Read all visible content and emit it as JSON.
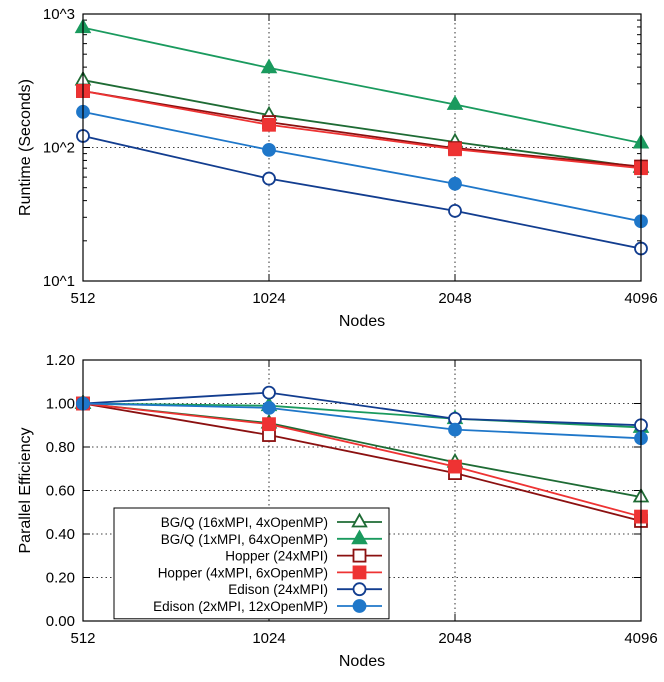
{
  "chart_data": [
    {
      "type": "line",
      "x": [
        512,
        1024,
        2048,
        4096
      ],
      "x_scale": "log2",
      "y_scale": "log10",
      "xlabel": "Nodes",
      "ylabel": "Runtime (Seconds)",
      "xticks": [
        "512",
        "1024",
        "2048",
        "4096"
      ],
      "yticks": [
        {
          "value": 10,
          "label": "10^1"
        },
        {
          "value": 100,
          "label": "10^2"
        },
        {
          "value": 1000,
          "label": "10^3"
        }
      ],
      "ylim": [
        10,
        1000
      ],
      "grid": true,
      "series": [
        {
          "name": "BG/Q (16xMPI, 4xOpenMP)",
          "color": "#1e6b34",
          "marker": "triangle-open",
          "values": [
            320,
            175,
            110,
            71
          ]
        },
        {
          "name": "BG/Q (1xMPI, 64xOpenMP)",
          "color": "#1a9a5e",
          "marker": "triangle-filled",
          "values": [
            790,
            395,
            210,
            108
          ]
        },
        {
          "name": "Hopper (24xMPI)",
          "color": "#8b1010",
          "marker": "square-open",
          "values": [
            265,
            155,
            99,
            72
          ]
        },
        {
          "name": "Hopper (4xMPI, 6xOpenMP)",
          "color": "#ee3333",
          "marker": "square-filled",
          "values": [
            265,
            148,
            97,
            70
          ]
        },
        {
          "name": "Edison (24xMPI)",
          "color": "#123d8f",
          "marker": "circle-open",
          "values": [
            122,
            58.5,
            33.5,
            17.5
          ]
        },
        {
          "name": "Edison (2xMPI, 12xOpenMP)",
          "color": "#1f77c9",
          "marker": "circle-filled",
          "values": [
            185,
            96,
            53.5,
            28
          ]
        }
      ]
    },
    {
      "type": "line",
      "x": [
        512,
        1024,
        2048,
        4096
      ],
      "x_scale": "log2",
      "xlabel": "Nodes",
      "ylabel": "Parallel Efficiency",
      "xticks": [
        "512",
        "1024",
        "2048",
        "4096"
      ],
      "yticks": [
        {
          "value": 0,
          "label": "0.00"
        },
        {
          "value": 0.2,
          "label": "0.20"
        },
        {
          "value": 0.4,
          "label": "0.40"
        },
        {
          "value": 0.6,
          "label": "0.60"
        },
        {
          "value": 0.8,
          "label": "0.80"
        },
        {
          "value": 1.0,
          "label": "1.00"
        },
        {
          "value": 1.2,
          "label": "1.20"
        }
      ],
      "ylim": [
        0,
        1.2
      ],
      "grid": true,
      "legend_position": "bottom-left",
      "series": [
        {
          "name": "BG/Q (16xMPI, 4xOpenMP)",
          "color": "#1e6b34",
          "marker": "triangle-open",
          "values": [
            1.0,
            0.91,
            0.73,
            0.57
          ]
        },
        {
          "name": "BG/Q (1xMPI, 64xOpenMP)",
          "color": "#1a9a5e",
          "marker": "triangle-filled",
          "values": [
            1.0,
            0.99,
            0.93,
            0.89
          ]
        },
        {
          "name": "Hopper (24xMPI)",
          "color": "#8b1010",
          "marker": "square-open",
          "values": [
            1.0,
            0.855,
            0.68,
            0.46
          ]
        },
        {
          "name": "Hopper (4xMPI, 6xOpenMP)",
          "color": "#ee3333",
          "marker": "square-filled",
          "values": [
            1.0,
            0.905,
            0.71,
            0.48
          ]
        },
        {
          "name": "Edison (24xMPI)",
          "color": "#123d8f",
          "marker": "circle-open",
          "values": [
            1.0,
            1.05,
            0.93,
            0.9
          ]
        },
        {
          "name": "Edison (2xMPI, 12xOpenMP)",
          "color": "#1f77c9",
          "marker": "circle-filled",
          "values": [
            1.0,
            0.98,
            0.88,
            0.84
          ]
        }
      ]
    }
  ]
}
